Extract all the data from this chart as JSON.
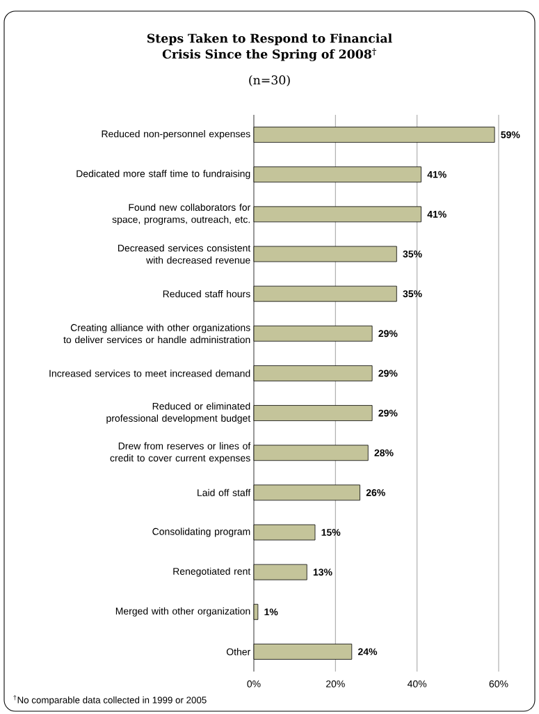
{
  "chart_data": {
    "type": "bar",
    "orientation": "horizontal",
    "title": "Steps Taken to Respond to Financial Crisis Since the Spring of 2008$^{†}$",
    "subtitle": "(n=30)",
    "categories": [
      "Reduced non-personnel expenses",
      "Dedicated more staff time to fundraising",
      "Found new collaborators for space, programs, outreach, etc.",
      "Decreased services consistent with decreased revenue",
      "Reduced staff hours",
      "Creating alliance with other organizations to deliver services or handle administration",
      "Increased services to meet increased demand",
      "Reduced or eliminated professional development budget",
      "Drew from reserves or lines of credit to cover current expenses",
      "Laid off staff",
      "Consolidating program",
      "Renegotiated rent",
      "Merged with other organization",
      "Other"
    ],
    "values": [
      59,
      41,
      41,
      35,
      35,
      29,
      29,
      29,
      28,
      26,
      15,
      13,
      1,
      24
    ],
    "value_labels": [
      "59%",
      "41%",
      "41%",
      "35%",
      "35%",
      "29%",
      "29%",
      "29%",
      "28%",
      "26%",
      "15%",
      "13%",
      "1%",
      "24%"
    ],
    "color": "#c4c49a",
    "xlim": [
      0,
      60
    ],
    "xticks": [
      {
        "value": 0,
        "label": "0%"
      },
      {
        "value": 20,
        "label": "20%"
      },
      {
        "value": 40,
        "label": "40%"
      },
      {
        "value": 60,
        "label": "60%"
      }
    ],
    "grid": "x",
    "annotations": [
      "$^{†}$No comparable data collected in 1999 or 2005"
    ]
  }
}
